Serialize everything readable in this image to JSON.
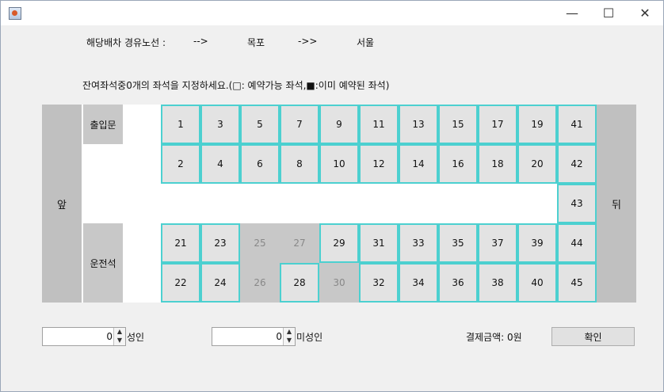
{
  "window": {
    "title": "",
    "minimize": "—",
    "maximize": "☐",
    "close": "✕"
  },
  "route": {
    "label": "해당배차 경유노선 :",
    "arrow1": "-->",
    "origin": "목포",
    "arrow2": "->>",
    "destination": "서울"
  },
  "instruction": "잔여좌석중0개의 좌석을 지정하세요.(□: 예약가능 좌석,■:이미 예약된 좌석)",
  "sides": {
    "front": "앞",
    "back": "뒤",
    "door": "출입문",
    "driver": "운전석"
  },
  "seats": {
    "row1": [
      "1",
      "3",
      "5",
      "7",
      "9",
      "11",
      "13",
      "15",
      "17",
      "19",
      "41"
    ],
    "row2": [
      "2",
      "4",
      "6",
      "8",
      "10",
      "12",
      "14",
      "16",
      "18",
      "20",
      "42"
    ],
    "row3": [
      "43"
    ],
    "row4": [
      "21",
      "23",
      "25",
      "27",
      "29",
      "31",
      "33",
      "35",
      "37",
      "39",
      "44"
    ],
    "row5": [
      "22",
      "24",
      "26",
      "28",
      "30",
      "32",
      "34",
      "36",
      "38",
      "40",
      "45"
    ],
    "reserved": [
      "25",
      "27",
      "26",
      "30"
    ]
  },
  "adult": {
    "value": "0",
    "label": "성인"
  },
  "minor": {
    "value": "0",
    "label": "미성인"
  },
  "payment": {
    "text": "결제금액: 0원"
  },
  "confirm_label": "확인",
  "colors": {
    "seat_border": "#4cd0d0",
    "seat_available": "#e3e3e3",
    "seat_reserved": "#c8c8c8"
  }
}
